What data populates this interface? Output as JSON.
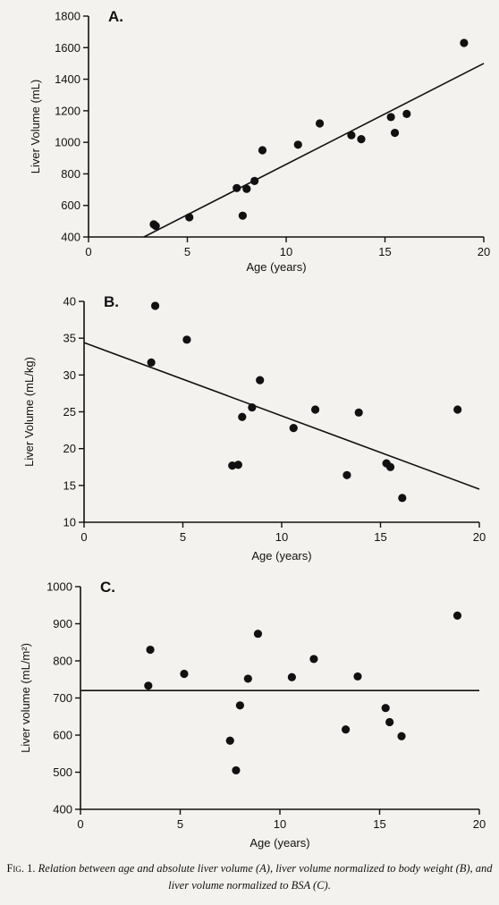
{
  "chart_data": [
    {
      "type": "scatter",
      "panel_label": "A.",
      "xlabel": "Age (years)",
      "ylabel": "Liver Volume (mL)",
      "xlim": [
        0,
        20
      ],
      "ylim": [
        400,
        1800
      ],
      "xticks": [
        "0",
        "5",
        "10",
        "15",
        "20"
      ],
      "yticks": [
        "400",
        "600",
        "800",
        "1000",
        "1200",
        "1400",
        "1600",
        "1800"
      ],
      "x": [
        3.3,
        3.4,
        5.1,
        7.5,
        7.8,
        8.0,
        8.4,
        8.8,
        10.6,
        11.7,
        13.3,
        13.8,
        15.3,
        15.5,
        16.1,
        19.0
      ],
      "y": [
        480,
        470,
        525,
        710,
        535,
        705,
        755,
        950,
        985,
        1120,
        1045,
        1020,
        1160,
        1060,
        1180,
        1630
      ],
      "fit_line": {
        "x": [
          2.8,
          20
        ],
        "y": [
          400,
          1500
        ]
      }
    },
    {
      "type": "scatter",
      "panel_label": "B.",
      "xlabel": "Age (years)",
      "ylabel": "Liver Volume (mL/kg)",
      "xlim": [
        0,
        20
      ],
      "ylim": [
        10,
        40
      ],
      "xticks": [
        "0",
        "5",
        "10",
        "15",
        "20"
      ],
      "yticks": [
        "10",
        "15",
        "20",
        "25",
        "30",
        "35",
        "40"
      ],
      "x": [
        3.4,
        3.6,
        5.2,
        7.5,
        7.8,
        8.0,
        8.5,
        8.9,
        10.6,
        11.7,
        13.3,
        13.9,
        15.3,
        15.5,
        16.1,
        18.9
      ],
      "y": [
        31.7,
        39.4,
        34.8,
        17.7,
        17.8,
        24.3,
        25.6,
        29.3,
        22.8,
        25.3,
        16.4,
        24.9,
        18.0,
        17.5,
        13.3,
        25.3
      ],
      "fit_line": {
        "x": [
          0,
          20
        ],
        "y": [
          34.4,
          14.5
        ]
      }
    },
    {
      "type": "scatter",
      "panel_label": "C.",
      "xlabel": "Age (years)",
      "ylabel": "Liver volume (mL/m²)",
      "xlim": [
        0,
        20
      ],
      "ylim": [
        400,
        1000
      ],
      "xticks": [
        "0",
        "5",
        "10",
        "15",
        "20"
      ],
      "yticks": [
        "400",
        "500",
        "600",
        "700",
        "800",
        "900",
        "1000"
      ],
      "x": [
        3.4,
        3.5,
        5.2,
        7.5,
        7.8,
        8.0,
        8.4,
        8.9,
        10.6,
        11.7,
        13.3,
        13.9,
        15.3,
        15.5,
        16.1,
        18.9
      ],
      "y": [
        733,
        830,
        765,
        585,
        505,
        680,
        752,
        873,
        756,
        805,
        615,
        758,
        673,
        635,
        597,
        922
      ],
      "fit_line": {
        "x": [
          0,
          20
        ],
        "y": [
          720,
          720
        ]
      }
    }
  ],
  "caption": {
    "fig_label": "Fig. 1.",
    "text": "Relation between age and absolute liver volume (A), liver volume normalized to body weight (B), and liver volume normalized to BSA (C)."
  }
}
